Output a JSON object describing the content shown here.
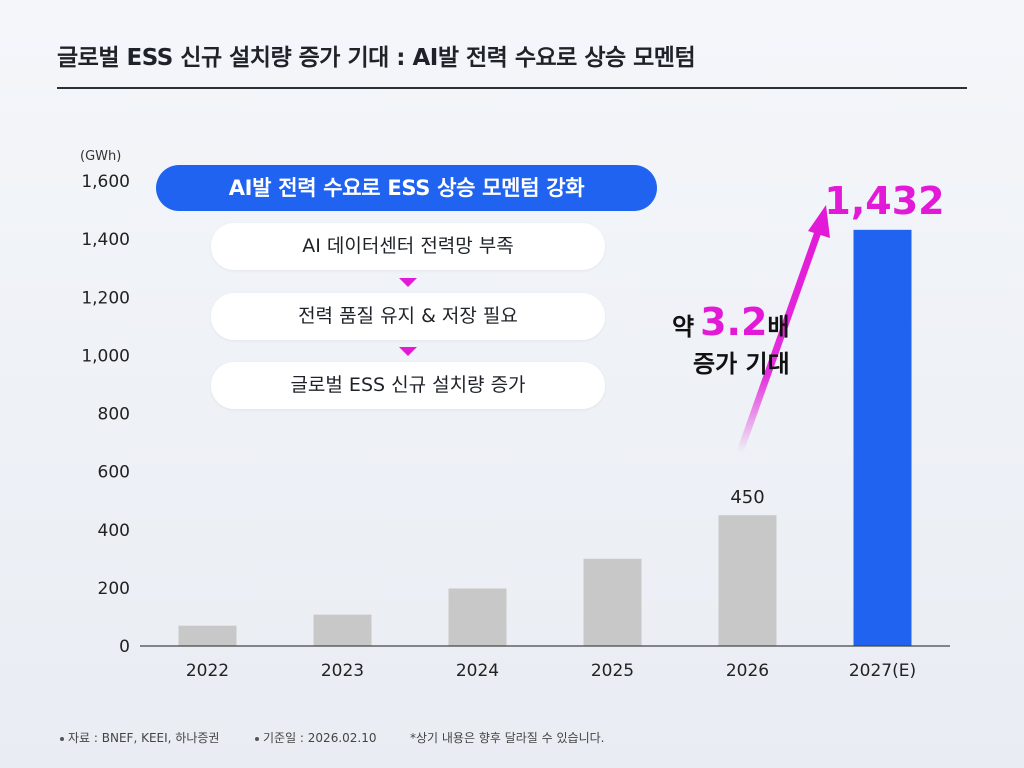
{
  "title": "글로벌 ESS 신규 설치량 증가 기대 : AI발 전력 수요로 상승 모멘텀",
  "chart_data": {
    "type": "bar",
    "unit": "(GWh)",
    "categories": [
      "2022",
      "2023",
      "2024",
      "2025",
      "2026",
      "2027(E)"
    ],
    "values": [
      70,
      108,
      198,
      300,
      450,
      1432
    ],
    "ylim": [
      0,
      1600
    ],
    "yticks": [
      "0",
      "200",
      "400",
      "600",
      "800",
      "1,000",
      "1,200",
      "1,400",
      "1,600"
    ],
    "data_labels": [
      "",
      "",
      "",
      "",
      "450",
      "1,432"
    ],
    "grid": false,
    "colors": {
      "default": "#c8c8c8",
      "highlight": "#1f63f0",
      "accent": "#e21ad8"
    },
    "highlight_index": 5
  },
  "callout": {
    "headline": "AI발 전력 수요로 ESS 상승 모멘텀 강화",
    "steps": [
      "AI 데이터센터 전력망 부족",
      "전력 품질 유지 & 저장 필요",
      "글로벌 ESS 신규 설치량 증가"
    ]
  },
  "growth": {
    "prefix": "약",
    "value": "3.2",
    "suffix": "배",
    "line2": "증가 기대"
  },
  "footer": {
    "source": "자료 : BNEF, KEEI, 하나증권",
    "date": "기준일 : 2026.02.10",
    "note": "*상기 내용은 향후 달라질 수 있습니다."
  }
}
